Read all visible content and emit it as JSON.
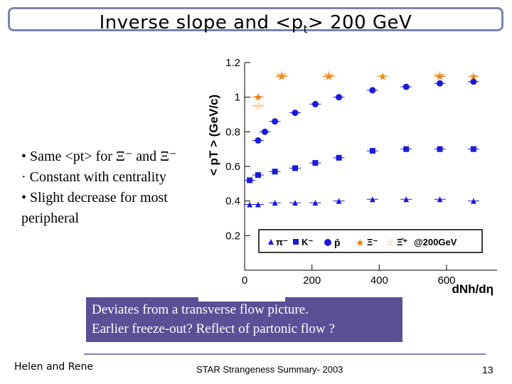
{
  "slide": {
    "title": "Inverse slope and <p",
    "title_sub": "t",
    "title_end": "> 200 GeV",
    "bullets": [
      "• Same <pt> for Ξ⁻ and Ξ⁻",
      "· Constant with centrality",
      "• Slight decrease for most",
      "peripheral"
    ],
    "callout_lines": [
      "Deviates from a transverse flow picture.",
      "Earlier freeze-out? Reflect of partonic flow ?"
    ],
    "footer_left": "Helen and Rene",
    "footer_center": "STAR Strangeness Summary- 2003",
    "page_number": "13"
  },
  "colors": {
    "title_border": "#7a82b0",
    "callout_bg": "#5b4f96",
    "pion": "#1a1adb",
    "kaon": "#1a1adb",
    "proton": "#1a1adb",
    "xi_minus": "#f07a10",
    "xi_bar": "#f2a540"
  },
  "chart_data": {
    "type": "scatter",
    "title": "",
    "ylabel": "< pT > (GeV/c)",
    "xlabel": "dNh/dη",
    "xlim": [
      0,
      750
    ],
    "ylim": [
      0,
      1.2
    ],
    "xticks": [
      0,
      200,
      400,
      600
    ],
    "yticks": [
      0.2,
      0.4,
      0.6,
      0.8,
      1.0,
      1.2
    ],
    "legend": {
      "location": "bottom",
      "entries": [
        "π⁻",
        "K⁻",
        "p̄",
        "Ξ⁻",
        "Ξ̄⁺",
        "@200GeV"
      ]
    },
    "series": [
      {
        "name": "π⁻",
        "marker": "triangle",
        "x": [
          15,
          40,
          90,
          150,
          210,
          280,
          380,
          480,
          580,
          680
        ],
        "y": [
          0.38,
          0.38,
          0.39,
          0.39,
          0.39,
          0.4,
          0.41,
          0.41,
          0.41,
          0.4
        ]
      },
      {
        "name": "K⁻",
        "marker": "square",
        "x": [
          15,
          40,
          90,
          150,
          210,
          280,
          380,
          480,
          580,
          680
        ],
        "y": [
          0.52,
          0.55,
          0.57,
          0.59,
          0.62,
          0.65,
          0.69,
          0.7,
          0.7,
          0.7
        ]
      },
      {
        "name": "p̄",
        "marker": "circle",
        "x": [
          40,
          60,
          90,
          150,
          210,
          280,
          380,
          480,
          580,
          680
        ],
        "y": [
          0.75,
          0.8,
          0.86,
          0.91,
          0.96,
          1.0,
          1.04,
          1.06,
          1.08,
          1.09
        ]
      },
      {
        "name": "Ξ⁻",
        "marker": "star",
        "x": [
          40,
          110,
          250,
          410,
          580,
          680
        ],
        "y": [
          1.0,
          1.12,
          1.12,
          1.12,
          1.12,
          1.12
        ]
      },
      {
        "name": "Ξ̄⁺",
        "marker": "open-star",
        "x": [
          40,
          110,
          250,
          410,
          580,
          680
        ],
        "y": [
          0.95,
          1.13,
          1.13,
          1.12,
          1.13,
          1.12
        ]
      }
    ]
  }
}
